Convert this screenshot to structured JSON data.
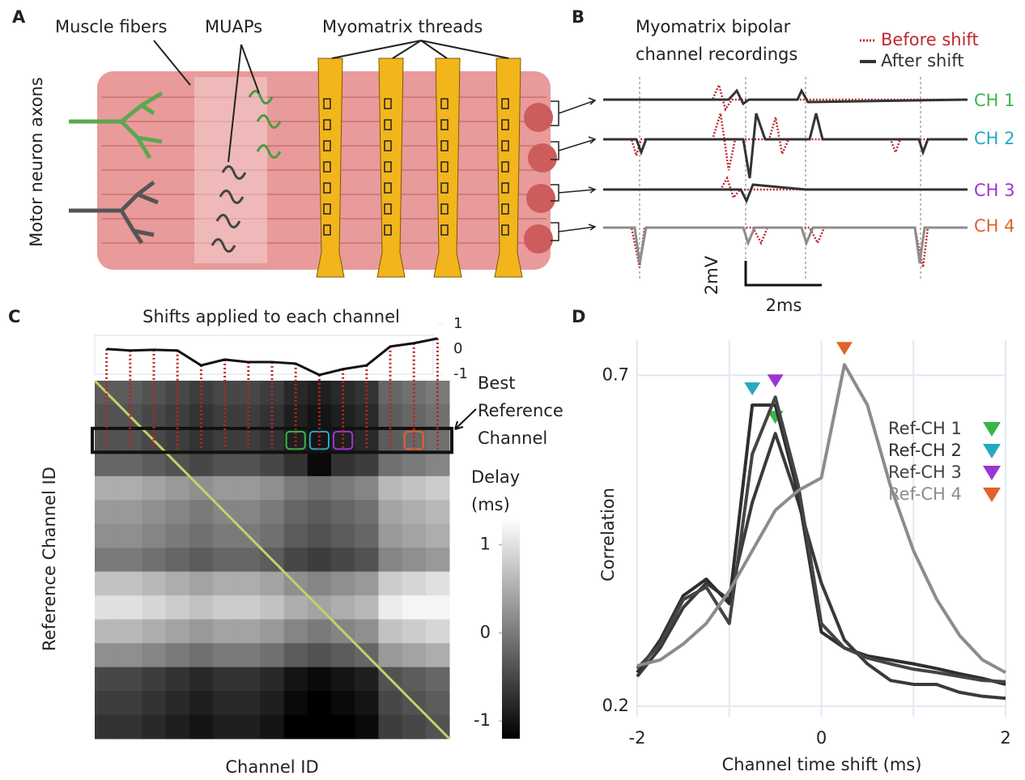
{
  "panel_a": {
    "label": "A",
    "muscle_fibers": "Muscle fibers",
    "muaps": "MUAPs",
    "threads": "Myomatrix threads",
    "axons": "Motor neuron axons"
  },
  "panel_b": {
    "label": "B",
    "title": [
      "Myomatrix bipolar",
      "channel recordings"
    ],
    "legend": [
      {
        "name": "Before shift",
        "color": "#c0282d"
      },
      {
        "name": "After shift",
        "color": "#333333"
      }
    ],
    "channels": [
      {
        "name": "CH 1",
        "color": "#3ab54a"
      },
      {
        "name": "CH 2",
        "color": "#26a9c0"
      },
      {
        "name": "CH 3",
        "color": "#9b35d4"
      },
      {
        "name": "CH 4",
        "color": "#e0622a"
      }
    ],
    "scale_y": "2mV",
    "scale_x": "2ms"
  },
  "panel_c": {
    "label": "C",
    "type": "heatmap",
    "title": "Shifts applied to each channel",
    "shifts": [
      0,
      -0.06,
      -0.03,
      -0.06,
      -0.65,
      -0.42,
      -0.52,
      -0.52,
      -0.58,
      -1.03,
      -0.8,
      -0.65,
      0.1,
      0.23,
      0.42
    ],
    "shift_ylim": [
      -1.13,
      1.06
    ],
    "shift_ticks": [
      1,
      0,
      -1
    ],
    "best_label": [
      "Best",
      "Reference",
      "Channel"
    ],
    "ylabel": "Reference Channel ID",
    "xlabel": "Channel ID",
    "colorbar_label": [
      "Delay",
      "(ms)"
    ],
    "clim": [
      -1.2,
      1.3
    ],
    "cticks": [
      1,
      0,
      -1
    ],
    "delays": [
      [
        -0.3,
        -0.3,
        -0.4,
        -0.5,
        -0.6,
        -0.5,
        -0.5,
        -0.6,
        -0.8,
        -0.9,
        -0.8,
        -0.7,
        -0.2,
        -0.1,
        0
      ],
      [
        -0.4,
        -0.4,
        -0.5,
        -0.6,
        -0.7,
        -0.6,
        -0.6,
        -0.7,
        -0.9,
        -1,
        -0.9,
        -0.8,
        -0.3,
        -0.2,
        -0.1
      ],
      [
        -0.4,
        -0.4,
        -0.5,
        -0.6,
        -0.7,
        -0.6,
        -0.6,
        -0.7,
        -0.9,
        -1,
        -0.9,
        -0.8,
        -0.3,
        -0.2,
        -0.1
      ],
      [
        -0.2,
        -0.2,
        -0.3,
        -0.4,
        -0.5,
        -0.4,
        -0.4,
        -0.5,
        -0.7,
        -1.1,
        -0.7,
        -0.6,
        -0.1,
        0,
        0.1
      ],
      [
        0.5,
        0.5,
        0.4,
        0.3,
        0.2,
        0.3,
        0.3,
        0.2,
        0,
        -0.1,
        0,
        0.1,
        0.6,
        0.7,
        0.8
      ],
      [
        0.3,
        0.3,
        0.2,
        0.1,
        0,
        0.1,
        0.1,
        0,
        -0.2,
        -0.3,
        -0.2,
        -0.1,
        0.4,
        0.5,
        0.6
      ],
      [
        0.2,
        0.2,
        0.1,
        0,
        -0.1,
        0,
        0,
        -0.1,
        -0.3,
        -0.4,
        -0.3,
        -0.2,
        0.3,
        0.4,
        0.5
      ],
      [
        0,
        0,
        -0.1,
        -0.2,
        -0.3,
        -0.2,
        -0.2,
        -0.3,
        -0.5,
        -0.6,
        -0.5,
        -0.4,
        0.1,
        0.2,
        0.3
      ],
      [
        0.7,
        0.7,
        0.6,
        0.5,
        0.4,
        0.5,
        0.5,
        0.4,
        0.2,
        0.1,
        0.2,
        0.3,
        0.8,
        0.9,
        1
      ],
      [
        1,
        1,
        0.9,
        0.8,
        0.7,
        0.8,
        0.8,
        0.7,
        0.5,
        0.4,
        0.5,
        0.6,
        1.1,
        1.2,
        1.2
      ],
      [
        0.6,
        0.6,
        0.5,
        0.4,
        0.3,
        0.4,
        0.4,
        0.3,
        0.1,
        0,
        0.1,
        0.2,
        0.7,
        0.8,
        0.9
      ],
      [
        0.2,
        0.2,
        0.1,
        0,
        -0.1,
        0,
        0,
        -0.1,
        -0.3,
        -0.4,
        -0.3,
        -0.2,
        0.3,
        0.4,
        0.5
      ],
      [
        -0.5,
        -0.5,
        -0.6,
        -0.7,
        -0.8,
        -0.7,
        -0.7,
        -0.8,
        -1,
        -1.1,
        -1,
        -0.9,
        -0.4,
        -0.3,
        -0.2
      ],
      [
        -0.6,
        -0.6,
        -0.7,
        -0.8,
        -0.9,
        -0.8,
        -0.8,
        -0.9,
        -1.1,
        -1.2,
        -1.1,
        -1,
        -0.5,
        -0.4,
        -0.3
      ],
      [
        -0.7,
        -0.7,
        -0.8,
        -0.9,
        -1,
        -0.9,
        -0.9,
        -1,
        -1.2,
        -1.2,
        -1.2,
        -1.1,
        -0.6,
        -0.5,
        -0.4
      ]
    ]
  },
  "panel_d": {
    "label": "D",
    "type": "line",
    "x": [
      -2,
      -1.75,
      -1.5,
      -1.25,
      -1,
      -0.75,
      -0.5,
      -0.25,
      0,
      0.25,
      0.5,
      0.75,
      1,
      1.25,
      1.5,
      1.75,
      2
    ],
    "xlim": [
      -2,
      2
    ],
    "xticks": [
      -2,
      0,
      2
    ],
    "xgrid": [
      -2,
      -1,
      0,
      1,
      2
    ],
    "ylim": [
      0.184,
      0.753
    ],
    "yticks": [
      0.2,
      0.7
    ],
    "xlabel": "Channel time shift (ms)",
    "ylabel": "Correlation",
    "series": [
      {
        "name": "Ref-CH 1",
        "color": "#3a3a3a",
        "marker_color": "#3ab54a",
        "values": [
          0.245,
          0.288,
          0.349,
          0.386,
          0.361,
          0.508,
          0.612,
          0.508,
          0.386,
          0.3,
          0.264,
          0.239,
          0.233,
          0.233,
          0.221,
          0.215,
          0.212
        ]
      },
      {
        "name": "Ref-CH 2",
        "color": "#2e2e2e",
        "marker_color": "#26a9c0",
        "values": [
          0.251,
          0.3,
          0.367,
          0.392,
          0.355,
          0.655,
          0.655,
          0.52,
          0.312,
          0.288,
          0.276,
          0.27,
          0.264,
          0.257,
          0.249,
          0.242,
          0.233
        ]
      },
      {
        "name": "Ref-CH 3",
        "color": "#444444",
        "marker_color": "#9b35d4",
        "values": [
          0.257,
          0.294,
          0.361,
          0.38,
          0.325,
          0.581,
          0.667,
          0.533,
          0.325,
          0.288,
          0.273,
          0.264,
          0.256,
          0.251,
          0.245,
          0.239,
          0.237
        ]
      },
      {
        "name": "Ref-CH 4",
        "color": "#8c8c8c",
        "marker_color": "#e0622a",
        "values": [
          0.261,
          0.27,
          0.294,
          0.325,
          0.374,
          0.435,
          0.496,
          0.526,
          0.545,
          0.716,
          0.655,
          0.533,
          0.435,
          0.362,
          0.307,
          0.27,
          0.251
        ]
      }
    ]
  }
}
